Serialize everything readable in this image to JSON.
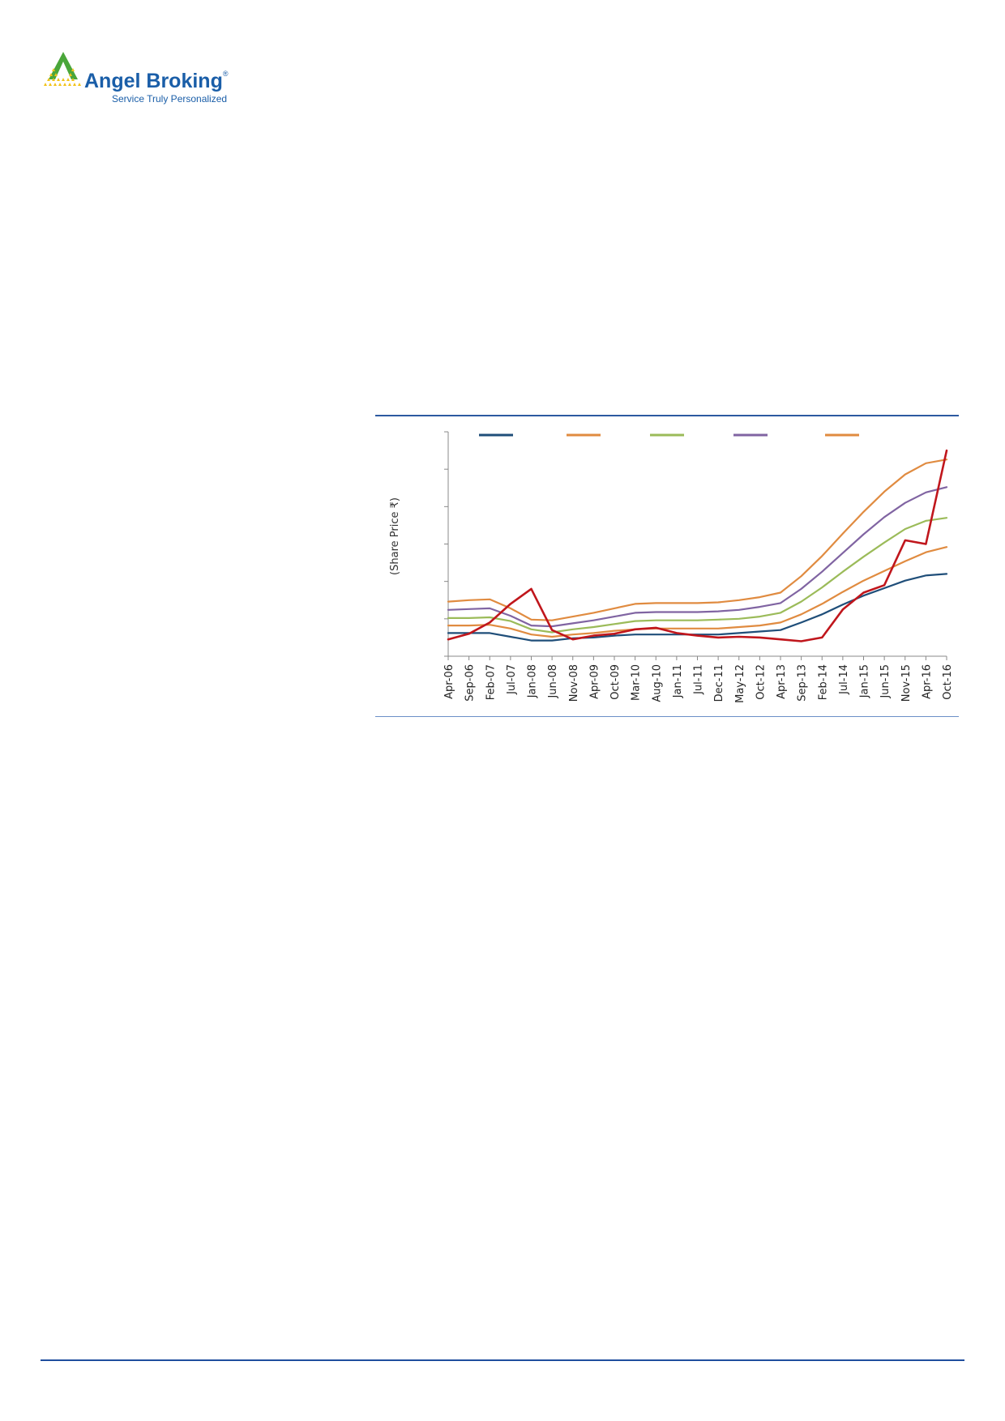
{
  "brand": {
    "name": "Angel Broking",
    "registered_mark": "®",
    "tagline": "Service Truly Personalized",
    "colors": {
      "blue": "#1a5ea8",
      "green": "#4aa63a",
      "yellow": "#f2c318"
    }
  },
  "chart_data": {
    "type": "line",
    "title": "",
    "xlabel": "",
    "ylabel": "(Share Price ₹)",
    "y_tick_labels_visible": false,
    "ylim": [
      0,
      6
    ],
    "grid": false,
    "legend_placement": "top",
    "legend_labels_visible": false,
    "categories": [
      "Apr-06",
      "Sep-06",
      "Feb-07",
      "Jul-07",
      "Jan-08",
      "Jun-08",
      "Nov-08",
      "Apr-09",
      "Oct-09",
      "Mar-10",
      "Aug-10",
      "Jan-11",
      "Jul-11",
      "Dec-11",
      "May-12",
      "Oct-12",
      "Apr-13",
      "Sep-13",
      "Feb-14",
      "Jul-14",
      "Jan-15",
      "Jun-15",
      "Nov-15",
      "Apr-16",
      "Oct-16"
    ],
    "series": [
      {
        "color": "#1f4e79",
        "values": [
          0.62,
          0.62,
          0.62,
          0.52,
          0.42,
          0.42,
          0.48,
          0.5,
          0.55,
          0.58,
          0.58,
          0.58,
          0.58,
          0.58,
          0.62,
          0.66,
          0.7,
          0.9,
          1.12,
          1.38,
          1.62,
          1.82,
          2.02,
          2.16,
          2.2
        ]
      },
      {
        "color": "#e08b40",
        "values": [
          0.82,
          0.82,
          0.84,
          0.74,
          0.58,
          0.52,
          0.58,
          0.62,
          0.68,
          0.72,
          0.74,
          0.74,
          0.74,
          0.74,
          0.78,
          0.82,
          0.9,
          1.12,
          1.4,
          1.72,
          2.02,
          2.28,
          2.54,
          2.78,
          2.92
        ]
      },
      {
        "color": "#9bbb59",
        "values": [
          1.02,
          1.02,
          1.04,
          0.94,
          0.72,
          0.64,
          0.72,
          0.78,
          0.86,
          0.94,
          0.96,
          0.96,
          0.96,
          0.98,
          1.0,
          1.06,
          1.16,
          1.46,
          1.84,
          2.26,
          2.66,
          3.04,
          3.4,
          3.62,
          3.7
        ]
      },
      {
        "color": "#8064a2",
        "values": [
          1.24,
          1.26,
          1.28,
          1.08,
          0.82,
          0.8,
          0.88,
          0.96,
          1.06,
          1.16,
          1.18,
          1.18,
          1.18,
          1.2,
          1.24,
          1.32,
          1.42,
          1.8,
          2.26,
          2.76,
          3.26,
          3.72,
          4.1,
          4.38,
          4.52
        ]
      },
      {
        "color": "#e08b40",
        "values": [
          1.46,
          1.5,
          1.52,
          1.28,
          0.98,
          0.96,
          1.06,
          1.16,
          1.28,
          1.4,
          1.42,
          1.42,
          1.42,
          1.44,
          1.5,
          1.58,
          1.7,
          2.14,
          2.68,
          3.28,
          3.86,
          4.4,
          4.86,
          5.16,
          5.26
        ]
      },
      {
        "color": "#c0161c",
        "values": [
          0.45,
          0.6,
          0.9,
          1.4,
          1.8,
          0.7,
          0.45,
          0.55,
          0.6,
          0.72,
          0.76,
          0.62,
          0.55,
          0.5,
          0.52,
          0.5,
          0.45,
          0.4,
          0.5,
          1.25,
          1.7,
          1.9,
          3.1,
          3.0,
          5.5
        ]
      }
    ]
  }
}
